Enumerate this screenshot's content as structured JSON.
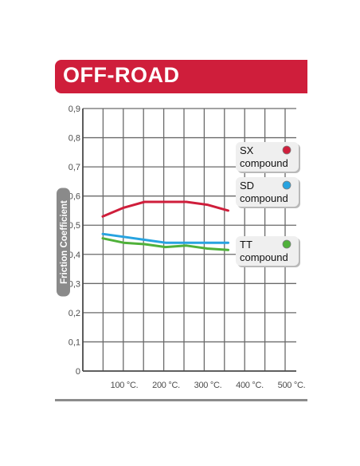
{
  "banner": {
    "title": "OFF-ROAD"
  },
  "chart_data": {
    "type": "line",
    "title": "OFF-ROAD",
    "ylabel": "Friction Coefficient",
    "xlabel": "",
    "x": [
      100,
      150,
      200,
      250,
      300,
      350,
      400
    ],
    "x_tick_values": [
      100,
      200,
      300,
      400,
      500
    ],
    "x_tick_labels": [
      "100 °C.",
      "200 °C.",
      "300 °C.",
      "400 °C.",
      "500 °C."
    ],
    "y_tick_labels": [
      "0",
      "0,1",
      "0,2",
      "0,3",
      "0,4",
      "0,5",
      "0,6",
      "0,7",
      "0,8",
      "0,9"
    ],
    "ylim": [
      0,
      0.9
    ],
    "grid": true,
    "series": [
      {
        "key": "sx",
        "name": "SX compound",
        "label_line1": "SX",
        "label_line2": "compound",
        "color": "#cf1e3b",
        "values": [
          0.53,
          0.56,
          0.58,
          0.58,
          0.58,
          0.57,
          0.55
        ]
      },
      {
        "key": "sd",
        "name": "SD compound",
        "label_line1": "SD",
        "label_line2": "compound",
        "color": "#27a3e0",
        "values": [
          0.47,
          0.46,
          0.45,
          0.44,
          0.44,
          0.44,
          0.44
        ]
      },
      {
        "key": "tt",
        "name": "TT compound",
        "label_line1": "TT",
        "label_line2": "compound",
        "color": "#4fb13a",
        "values": [
          0.455,
          0.44,
          0.435,
          0.425,
          0.43,
          0.42,
          0.415
        ]
      }
    ]
  }
}
